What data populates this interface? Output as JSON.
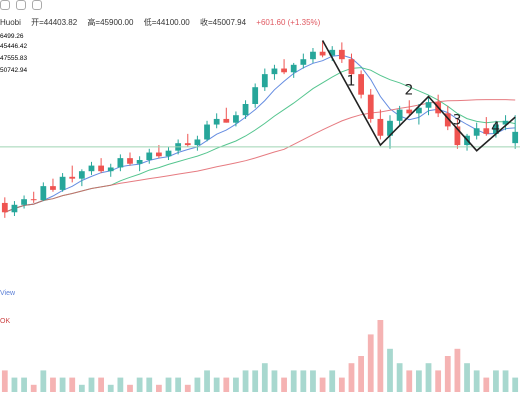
{
  "header": {
    "exchange": "Huobi",
    "open_label": "开=44403.82",
    "high_label": "高=45900.00",
    "low_label": "低=44100.00",
    "close_label": "收=45007.94",
    "change": "+601.60 (+1.35%)"
  },
  "ma_values": [
    {
      "text": "6499.26",
      "color": "#e0a800"
    },
    {
      "text": "45446.42",
      "color": "#3d6fd9"
    },
    {
      "text": "47555.83",
      "color": "#2bb673"
    },
    {
      "text": "50742.94",
      "color": "#c02a8a"
    }
  ],
  "labels": {
    "view_link": "View",
    "volume_label": "OK"
  },
  "annotations": [
    "1",
    "2",
    "3",
    "4"
  ],
  "colors": {
    "up": "#26a69a",
    "down": "#ef5350",
    "volume_up": "#a8d8cf",
    "volume_down": "#f5b3b3",
    "ma_fast": "#3d6fd9",
    "ma_mid": "#2bb673",
    "ma_slow": "#e05a62",
    "support_line": "#9fd4b3"
  },
  "chart_data": {
    "type": "candlestick",
    "grid": false,
    "ohlc": [
      [
        41200,
        41500,
        40400,
        40700
      ],
      [
        40700,
        41300,
        40500,
        41100
      ],
      [
        41100,
        41600,
        40900,
        41400
      ],
      [
        41400,
        41800,
        41200,
        41350
      ],
      [
        41350,
        42300,
        41300,
        42100
      ],
      [
        42100,
        42500,
        41800,
        41900
      ],
      [
        41900,
        42800,
        41800,
        42600
      ],
      [
        42600,
        43200,
        42300,
        42500
      ],
      [
        42500,
        43000,
        42100,
        42900
      ],
      [
        42900,
        43400,
        42700,
        43200
      ],
      [
        43200,
        43600,
        42800,
        42900
      ],
      [
        42900,
        43300,
        42600,
        43100
      ],
      [
        43100,
        43800,
        42900,
        43600
      ],
      [
        43600,
        43900,
        43200,
        43300
      ],
      [
        43300,
        43700,
        42900,
        43500
      ],
      [
        43500,
        44100,
        43300,
        43900
      ],
      [
        43900,
        44300,
        43600,
        43700
      ],
      [
        43700,
        44200,
        43500,
        44000
      ],
      [
        44000,
        44600,
        43800,
        44400
      ],
      [
        44400,
        44900,
        44200,
        44300
      ],
      [
        44300,
        44800,
        44000,
        44600
      ],
      [
        44600,
        45600,
        44500,
        45400
      ],
      [
        45400,
        46000,
        45200,
        45700
      ],
      [
        45700,
        46300,
        45500,
        45500
      ],
      [
        45500,
        46100,
        45300,
        45900
      ],
      [
        45900,
        46700,
        45700,
        46500
      ],
      [
        46500,
        47600,
        46300,
        47400
      ],
      [
        47400,
        48400,
        47200,
        48100
      ],
      [
        48100,
        48600,
        47800,
        48400
      ],
      [
        48400,
        48900,
        48100,
        48200
      ],
      [
        48200,
        48700,
        47900,
        48600
      ],
      [
        48600,
        49200,
        48400,
        48900
      ],
      [
        48900,
        49500,
        48700,
        49300
      ],
      [
        49300,
        49900,
        49000,
        49100
      ],
      [
        49100,
        49600,
        48800,
        49400
      ],
      [
        49400,
        49800,
        48700,
        48900
      ],
      [
        48900,
        49200,
        47900,
        48100
      ],
      [
        48100,
        48300,
        46800,
        47000
      ],
      [
        47000,
        47300,
        45500,
        45700
      ],
      [
        45700,
        46200,
        44600,
        44800
      ],
      [
        44800,
        45900,
        44100,
        45600
      ],
      [
        45600,
        46400,
        45300,
        46200
      ],
      [
        46200,
        46700,
        45900,
        46000
      ],
      [
        46000,
        46500,
        45400,
        46300
      ],
      [
        46300,
        46900,
        45900,
        46600
      ],
      [
        46600,
        47000,
        45800,
        46000
      ],
      [
        46000,
        46400,
        45100,
        45300
      ],
      [
        45300,
        45700,
        44100,
        44300
      ],
      [
        44300,
        44900,
        44000,
        44800
      ],
      [
        44800,
        45500,
        44600,
        45200
      ],
      [
        45200,
        45800,
        44800,
        44900
      ],
      [
        44900,
        45600,
        44700,
        45400
      ],
      [
        45400,
        45900,
        45100,
        45600
      ],
      [
        44403.82,
        45900,
        44100,
        45007.94
      ]
    ],
    "volume": [
      3,
      2,
      2,
      1,
      3,
      2,
      2,
      2,
      1,
      2,
      2,
      1,
      2,
      1,
      2,
      2,
      1,
      2,
      2,
      1,
      2,
      3,
      2,
      2,
      2,
      3,
      3,
      4,
      3,
      2,
      3,
      3,
      3,
      2,
      3,
      2,
      4,
      5,
      8,
      10,
      6,
      4,
      3,
      3,
      4,
      3,
      5,
      6,
      4,
      3,
      2,
      3,
      3,
      2
    ],
    "y_range": [
      36000,
      51000
    ],
    "x_range": [
      -0.5,
      53.5
    ],
    "support_level": 44200,
    "trend_points": [
      [
        33,
        49900
      ],
      [
        39,
        44300
      ],
      [
        44,
        46900
      ],
      [
        49,
        44000
      ],
      [
        53,
        45800
      ]
    ]
  }
}
